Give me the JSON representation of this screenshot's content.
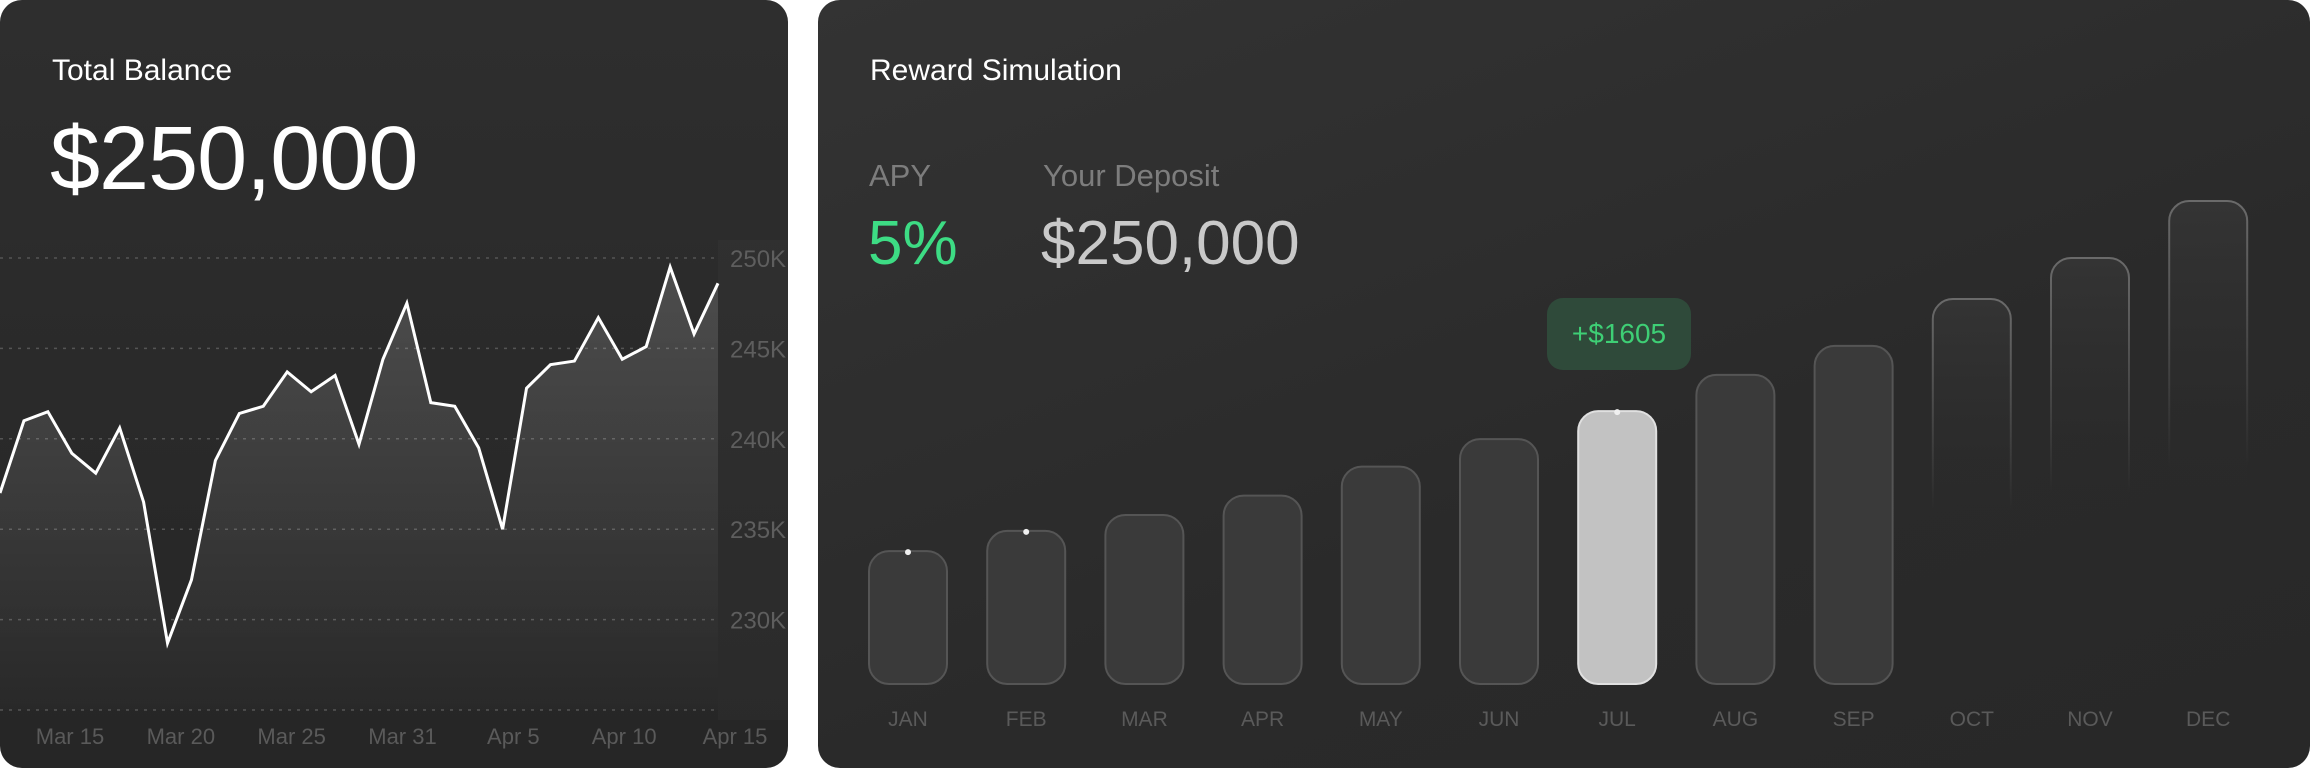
{
  "balance_card": {
    "title": "Total Balance",
    "amount": "$250,000"
  },
  "reward_card": {
    "title": "Reward Simulation",
    "apy_label": "APY",
    "apy_value": "5%",
    "deposit_label": "Your Deposit",
    "deposit_value": "$250,000",
    "tooltip": "+$1605"
  },
  "colors": {
    "accent_green": "#3ddc84",
    "tooltip_bg": "#2f4a3a",
    "highlight_bar": "#c2c2c2"
  },
  "chart_data": [
    {
      "type": "area",
      "ylim": [
        225,
        250
      ],
      "y_unit": "K",
      "y_ticks": [
        "250K",
        "245K",
        "240K",
        "235K",
        "230K"
      ],
      "y_tick_values": [
        250,
        245,
        240,
        235,
        230
      ],
      "x_ticks": [
        "Mar 15",
        "Mar 20",
        "Mar 25",
        "Mar 31",
        "Apr 5",
        "Apr 10",
        "Apr 15"
      ],
      "grid": true,
      "values": [
        237.0,
        241.0,
        241.5,
        239.2,
        238.1,
        240.6,
        236.5,
        228.7,
        232.2,
        238.8,
        241.4,
        241.8,
        243.7,
        242.6,
        243.5,
        239.7,
        244.4,
        247.5,
        242.0,
        241.8,
        239.5,
        235.0,
        242.8,
        244.1,
        244.3,
        246.7,
        244.4,
        245.1,
        249.5,
        245.8,
        248.6
      ]
    },
    {
      "type": "bar",
      "categories": [
        "JAN",
        "FEB",
        "MAR",
        "APR",
        "MAY",
        "JUN",
        "JUL",
        "AUG",
        "SEP",
        "OCT",
        "NOV",
        "DEC"
      ],
      "relative_values": [
        27.5,
        31.7,
        35,
        39,
        45,
        50.7,
        56.5,
        64,
        70,
        79.7,
        88.2,
        100
      ],
      "highlighted": "JUL",
      "marked": [
        "JAN",
        "FEB",
        "JUL"
      ],
      "faded": [
        "OCT",
        "NOV",
        "DEC"
      ]
    }
  ]
}
